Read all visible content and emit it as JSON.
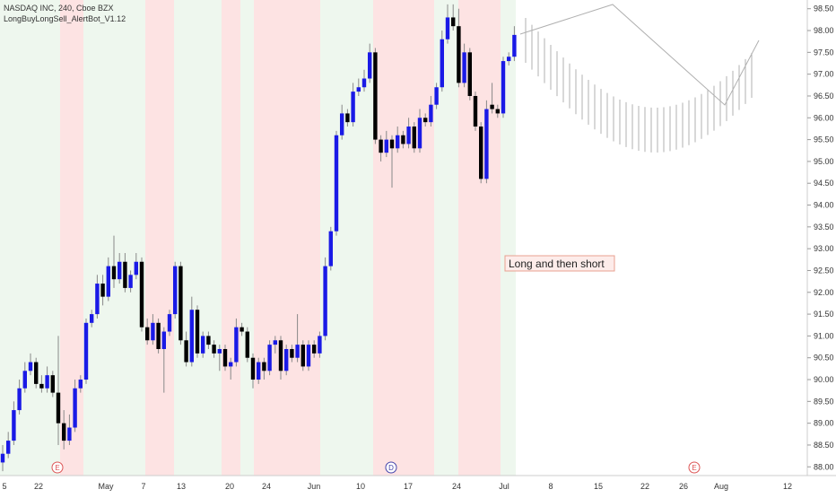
{
  "chart_data": {
    "type": "candlestick",
    "title": "NASDAQ INC, 240, Cboe BZX",
    "subtitle": "LongBuyLongSell_AlertBot_V1.12",
    "annotation": "Long and then short",
    "events": [
      "E",
      "D",
      "E"
    ],
    "up_color": "#1a1ae6",
    "down_color": "#000000",
    "categories": [
      "5",
      "22",
      "May",
      "7",
      "13",
      "20",
      "24",
      "Jun",
      "10",
      "17",
      "24",
      "Jul",
      "8",
      "15",
      "22",
      "26",
      "Aug",
      "12"
    ],
    "ylim": [
      87.8,
      98.7
    ],
    "yticks": [
      {
        "value": 88,
        "label": "88.00"
      },
      {
        "value": 88.5,
        "label": "88.50"
      },
      {
        "value": 89,
        "label": "89.00"
      },
      {
        "value": 89.5,
        "label": "89.50"
      },
      {
        "value": 90,
        "label": "90.00"
      },
      {
        "value": 90.5,
        "label": "90.50"
      },
      {
        "value": 91,
        "label": "91.00"
      },
      {
        "value": 91.5,
        "label": "91.50"
      },
      {
        "value": 92,
        "label": "92.00"
      },
      {
        "value": 92.5,
        "label": "92.50"
      },
      {
        "value": 93,
        "label": "93.00"
      },
      {
        "value": 93.5,
        "label": "93.50"
      },
      {
        "value": 94,
        "label": "94.00"
      },
      {
        "value": 94.5,
        "label": "94.50"
      },
      {
        "value": 95,
        "label": "95.00"
      },
      {
        "value": 95.5,
        "label": "95.50"
      },
      {
        "value": 96,
        "label": "96.00"
      },
      {
        "value": 96.5,
        "label": "96.50"
      },
      {
        "value": 97,
        "label": "97.00"
      },
      {
        "value": 97.5,
        "label": "97.50"
      },
      {
        "value": 98,
        "label": "98.00"
      },
      {
        "value": 98.5,
        "label": "98.50"
      }
    ],
    "ohlc": [
      [
        88.1,
        88.5,
        87.9,
        88.3
      ],
      [
        88.3,
        88.8,
        88.2,
        88.6
      ],
      [
        88.6,
        89.5,
        88.5,
        89.3
      ],
      [
        89.3,
        90.0,
        89.2,
        89.8
      ],
      [
        89.8,
        90.4,
        89.7,
        90.2
      ],
      [
        90.2,
        90.6,
        90.1,
        90.4
      ],
      [
        90.4,
        90.5,
        89.8,
        89.9
      ],
      [
        89.9,
        90.1,
        89.7,
        89.8
      ],
      [
        89.8,
        90.3,
        89.7,
        90.1
      ],
      [
        90.1,
        90.2,
        89.6,
        89.7
      ],
      [
        89.7,
        91.0,
        88.5,
        89.0
      ],
      [
        89.0,
        89.3,
        88.4,
        88.6
      ],
      [
        88.6,
        89.2,
        88.5,
        88.9
      ],
      [
        88.9,
        90.0,
        88.8,
        89.8
      ],
      [
        89.8,
        90.1,
        89.7,
        90.0
      ],
      [
        90.0,
        91.4,
        89.9,
        91.3
      ],
      [
        91.3,
        91.6,
        91.2,
        91.5
      ],
      [
        91.5,
        92.4,
        91.4,
        92.2
      ],
      [
        92.2,
        92.4,
        91.7,
        91.9
      ],
      [
        91.9,
        92.8,
        91.8,
        92.6
      ],
      [
        92.6,
        93.3,
        92.1,
        92.3
      ],
      [
        92.3,
        92.9,
        92.2,
        92.7
      ],
      [
        92.7,
        92.9,
        92.0,
        92.1
      ],
      [
        92.1,
        92.5,
        92.0,
        92.4
      ],
      [
        92.4,
        92.9,
        92.3,
        92.7
      ],
      [
        92.7,
        92.8,
        91.1,
        91.2
      ],
      [
        91.2,
        91.4,
        90.8,
        90.9
      ],
      [
        90.9,
        91.5,
        90.8,
        91.3
      ],
      [
        91.3,
        91.4,
        90.6,
        90.7
      ],
      [
        90.7,
        91.2,
        89.7,
        91.1
      ],
      [
        91.1,
        91.6,
        91.0,
        91.5
      ],
      [
        91.5,
        92.7,
        91.4,
        92.6
      ],
      [
        92.6,
        92.7,
        90.8,
        90.9
      ],
      [
        90.9,
        91.1,
        90.3,
        90.4
      ],
      [
        90.4,
        91.9,
        90.3,
        91.6
      ],
      [
        91.6,
        91.7,
        90.5,
        90.6
      ],
      [
        90.6,
        91.1,
        90.5,
        91.0
      ],
      [
        91.0,
        91.1,
        90.7,
        90.8
      ],
      [
        90.8,
        90.9,
        90.5,
        90.6
      ],
      [
        90.6,
        90.8,
        90.2,
        90.7
      ],
      [
        90.7,
        90.8,
        90.2,
        90.3
      ],
      [
        90.3,
        90.5,
        90.0,
        90.4
      ],
      [
        90.4,
        91.4,
        90.3,
        91.2
      ],
      [
        91.2,
        91.3,
        91.0,
        91.1
      ],
      [
        91.1,
        91.2,
        90.4,
        90.5
      ],
      [
        90.5,
        90.6,
        89.8,
        90.0
      ],
      [
        90.0,
        90.5,
        89.9,
        90.4
      ],
      [
        90.4,
        90.5,
        90.0,
        90.2
      ],
      [
        90.2,
        90.9,
        90.1,
        90.8
      ],
      [
        90.8,
        91.0,
        90.6,
        90.9
      ],
      [
        90.9,
        91.0,
        90.0,
        90.2
      ],
      [
        90.2,
        90.8,
        90.1,
        90.7
      ],
      [
        90.7,
        90.8,
        90.4,
        90.5
      ],
      [
        90.5,
        91.5,
        90.4,
        90.8
      ],
      [
        90.8,
        90.9,
        90.2,
        90.3
      ],
      [
        90.3,
        90.9,
        90.2,
        90.8
      ],
      [
        90.8,
        90.9,
        90.5,
        90.6
      ],
      [
        90.6,
        91.1,
        90.5,
        91.0
      ],
      [
        91.0,
        92.8,
        90.9,
        92.6
      ],
      [
        92.6,
        93.5,
        92.5,
        93.4
      ],
      [
        93.4,
        95.7,
        93.3,
        95.6
      ],
      [
        95.6,
        96.3,
        95.5,
        96.1
      ],
      [
        96.1,
        96.2,
        95.8,
        95.9
      ],
      [
        95.9,
        96.8,
        95.8,
        96.6
      ],
      [
        96.6,
        96.9,
        96.5,
        96.7
      ],
      [
        96.7,
        97.1,
        96.6,
        96.9
      ],
      [
        96.9,
        97.7,
        96.8,
        97.5
      ],
      [
        97.5,
        97.6,
        95.4,
        95.5
      ],
      [
        95.5,
        95.6,
        95.0,
        95.2
      ],
      [
        95.2,
        95.7,
        95.1,
        95.5
      ],
      [
        95.5,
        95.6,
        94.4,
        95.3
      ],
      [
        95.3,
        95.8,
        95.2,
        95.6
      ],
      [
        95.6,
        95.7,
        95.3,
        95.4
      ],
      [
        95.4,
        96.0,
        95.3,
        95.8
      ],
      [
        95.8,
        95.9,
        95.2,
        95.3
      ],
      [
        95.3,
        96.2,
        95.2,
        96.0
      ],
      [
        96.0,
        96.1,
        95.8,
        95.9
      ],
      [
        95.9,
        96.5,
        95.8,
        96.3
      ],
      [
        96.3,
        96.8,
        96.2,
        96.7
      ],
      [
        96.7,
        98.0,
        96.6,
        97.8
      ],
      [
        97.8,
        98.6,
        97.7,
        98.3
      ],
      [
        98.3,
        98.6,
        98.0,
        98.1
      ],
      [
        98.1,
        98.5,
        96.7,
        96.8
      ],
      [
        96.8,
        97.7,
        96.7,
        97.5
      ],
      [
        97.5,
        97.6,
        96.4,
        96.5
      ],
      [
        96.5,
        96.6,
        95.7,
        95.8
      ],
      [
        95.8,
        95.9,
        94.5,
        94.6
      ],
      [
        94.6,
        96.4,
        94.5,
        96.2
      ],
      [
        96.3,
        96.8,
        96.1,
        96.2
      ],
      [
        96.2,
        96.3,
        96.0,
        96.1
      ],
      [
        96.1,
        97.4,
        96.0,
        97.3
      ],
      [
        97.3,
        97.5,
        97.2,
        97.4
      ],
      [
        97.4,
        98.1,
        97.3,
        97.9
      ]
    ]
  }
}
